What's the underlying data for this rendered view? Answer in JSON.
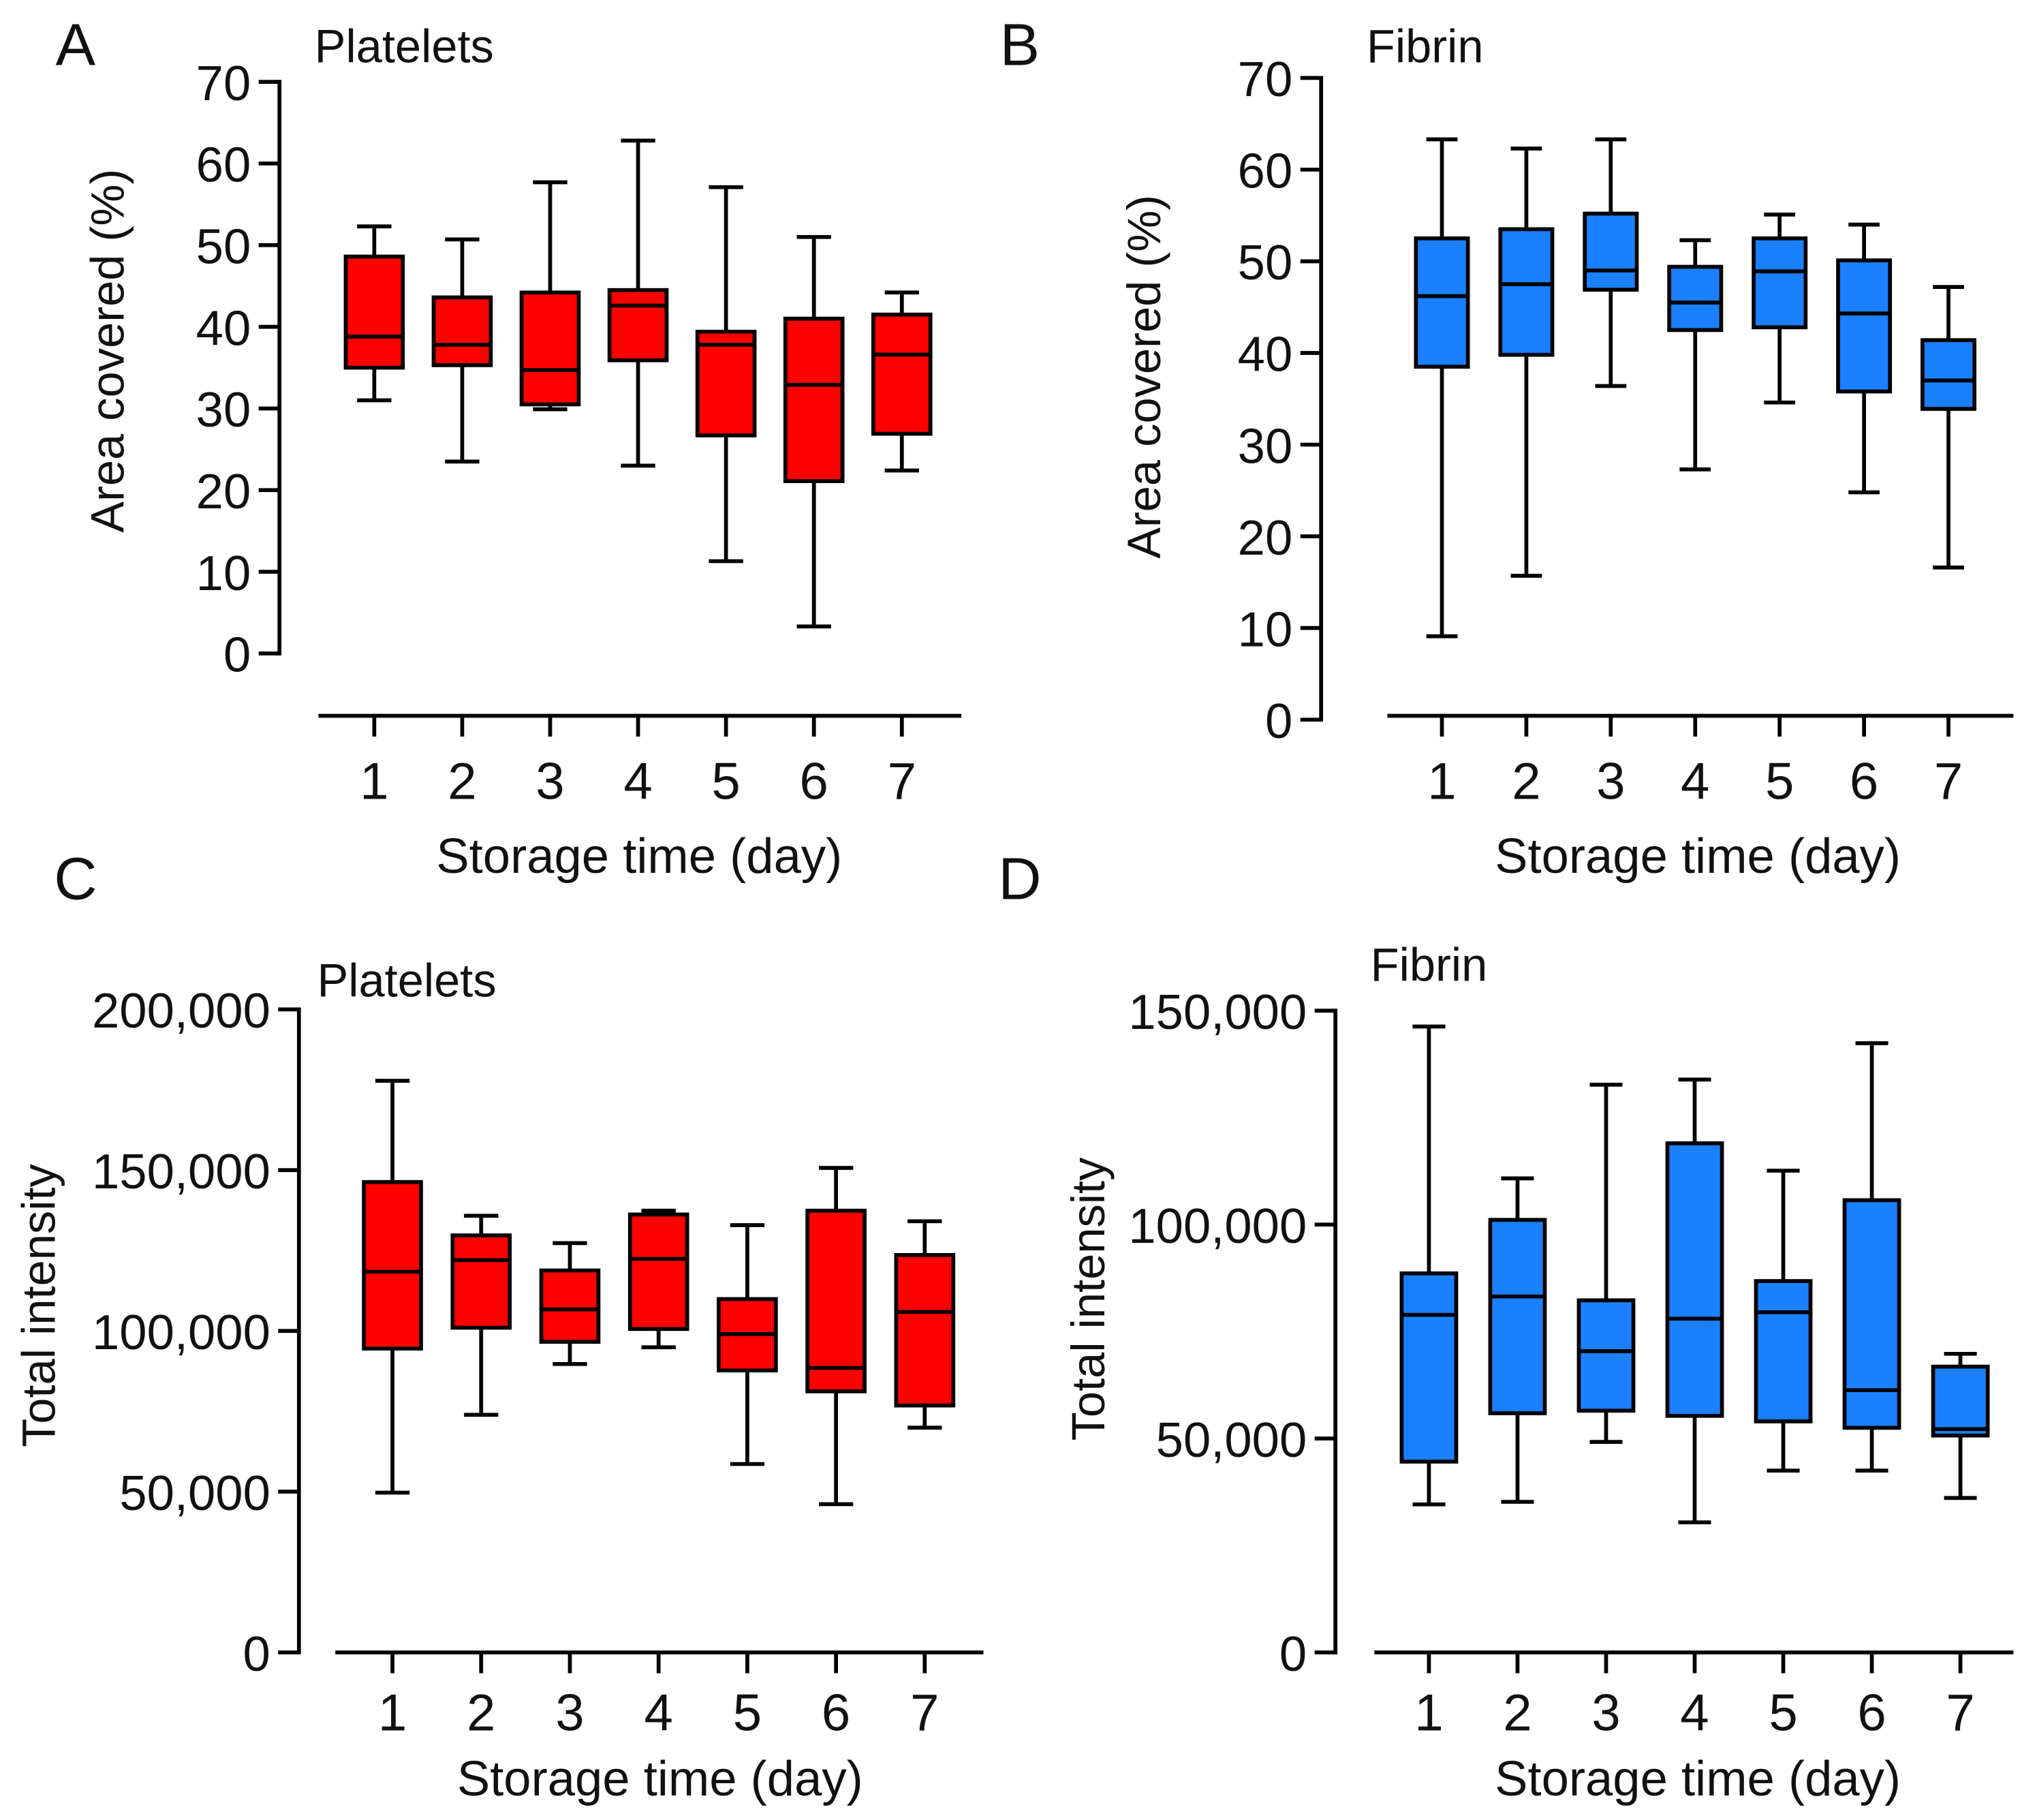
{
  "chart_data": [
    {
      "panel": "A",
      "type": "boxplot",
      "title": "Platelets",
      "xlabel": "Storage time (day)",
      "ylabel": "Area covered (%)",
      "ylim": [
        0,
        70
      ],
      "yticks": [
        0,
        10,
        20,
        30,
        40,
        50,
        60,
        70
      ],
      "ytick_labels": [
        "0",
        "10",
        "20",
        "30",
        "40",
        "50",
        "60",
        "70"
      ],
      "categories": [
        "1",
        "2",
        "3",
        "4",
        "5",
        "6",
        "7"
      ],
      "color": "#ff0000",
      "boxes": [
        {
          "min": 31.0,
          "q1": 35.0,
          "median": 38.8,
          "q3": 48.6,
          "max": 52.3
        },
        {
          "min": 23.5,
          "q1": 35.3,
          "median": 37.8,
          "q3": 43.6,
          "max": 50.7
        },
        {
          "min": 29.9,
          "q1": 30.5,
          "median": 34.7,
          "q3": 44.2,
          "max": 57.7
        },
        {
          "min": 23.0,
          "q1": 35.9,
          "median": 42.6,
          "q3": 44.5,
          "max": 62.8
        },
        {
          "min": 11.3,
          "q1": 26.7,
          "median": 37.8,
          "q3": 39.4,
          "max": 57.1
        },
        {
          "min": 3.3,
          "q1": 21.1,
          "median": 32.9,
          "q3": 41.0,
          "max": 51.0
        },
        {
          "min": 22.4,
          "q1": 26.9,
          "median": 36.6,
          "q3": 41.5,
          "max": 44.2
        }
      ]
    },
    {
      "panel": "B",
      "type": "boxplot",
      "title": "Fibrin",
      "xlabel": "Storage time (day)",
      "ylabel": "Area covered (%)",
      "ylim": [
        0,
        70
      ],
      "yticks": [
        0,
        10,
        20,
        30,
        40,
        50,
        60,
        70
      ],
      "ytick_labels": [
        "0",
        "10",
        "20",
        "30",
        "40",
        "50",
        "60",
        "70"
      ],
      "categories": [
        "1",
        "2",
        "3",
        "4",
        "5",
        "6",
        "7"
      ],
      "color": "#1a80ff",
      "boxes": [
        {
          "min": 9.1,
          "q1": 38.5,
          "median": 46.2,
          "q3": 52.5,
          "max": 63.3
        },
        {
          "min": 15.7,
          "q1": 39.8,
          "median": 47.5,
          "q3": 53.5,
          "max": 62.3
        },
        {
          "min": 36.4,
          "q1": 46.9,
          "median": 49.0,
          "q3": 55.2,
          "max": 63.3
        },
        {
          "min": 27.3,
          "q1": 42.5,
          "median": 45.5,
          "q3": 49.4,
          "max": 52.3
        },
        {
          "min": 34.6,
          "q1": 42.8,
          "median": 48.9,
          "q3": 52.5,
          "max": 55.1
        },
        {
          "min": 24.8,
          "q1": 35.8,
          "median": 44.3,
          "q3": 50.1,
          "max": 54.0
        },
        {
          "min": 16.6,
          "q1": 33.9,
          "median": 37.0,
          "q3": 41.4,
          "max": 47.2
        }
      ]
    },
    {
      "panel": "C",
      "type": "boxplot",
      "title": "Platelets",
      "xlabel": "Storage time (day)",
      "ylabel": "Total intensity",
      "ylim": [
        0,
        200000
      ],
      "yticks": [
        0,
        50000,
        100000,
        150000,
        200000
      ],
      "ytick_labels": [
        "0",
        "50,000",
        "100,000",
        "150,000",
        "200,000"
      ],
      "categories": [
        "1",
        "2",
        "3",
        "4",
        "5",
        "6",
        "7"
      ],
      "color": "#ff0000",
      "boxes": [
        {
          "min": 49700,
          "q1": 94500,
          "median": 118400,
          "q3": 146300,
          "max": 177800
        },
        {
          "min": 73900,
          "q1": 101000,
          "median": 122000,
          "q3": 129700,
          "max": 135800
        },
        {
          "min": 89700,
          "q1": 96600,
          "median": 106700,
          "q3": 118800,
          "max": 127300
        },
        {
          "min": 94900,
          "q1": 100600,
          "median": 122400,
          "q3": 136200,
          "max": 137400
        },
        {
          "min": 58600,
          "q1": 87700,
          "median": 99000,
          "q3": 109900,
          "max": 132900
        },
        {
          "min": 46100,
          "q1": 81200,
          "median": 88500,
          "q3": 137400,
          "max": 150700
        },
        {
          "min": 69900,
          "q1": 76800,
          "median": 105900,
          "q3": 123600,
          "max": 134100
        }
      ]
    },
    {
      "panel": "D",
      "type": "boxplot",
      "title": "Fibrin",
      "xlabel": "Storage time (day)",
      "ylabel": "Total intensity",
      "ylim": [
        0,
        150000
      ],
      "yticks": [
        0,
        50000,
        100000,
        150000
      ],
      "ytick_labels": [
        "0",
        "50,000",
        "100,000",
        "150,000"
      ],
      "categories": [
        "1",
        "2",
        "3",
        "4",
        "5",
        "6",
        "7"
      ],
      "color": "#1a80ff",
      "boxes": [
        {
          "min": 34600,
          "q1": 44600,
          "median": 78900,
          "q3": 88600,
          "max": 146300
        },
        {
          "min": 35200,
          "q1": 55900,
          "median": 83200,
          "q3": 101100,
          "max": 110800
        },
        {
          "min": 49200,
          "q1": 56500,
          "median": 70400,
          "q3": 82300,
          "max": 132700
        },
        {
          "min": 30400,
          "q1": 55300,
          "median": 78000,
          "q3": 119000,
          "max": 133900
        },
        {
          "min": 42500,
          "q1": 54000,
          "median": 79500,
          "q3": 86800,
          "max": 112600
        },
        {
          "min": 42500,
          "q1": 52500,
          "median": 61300,
          "q3": 105700,
          "max": 142400
        },
        {
          "min": 36100,
          "q1": 50700,
          "median": 52200,
          "q3": 66800,
          "max": 69800
        }
      ]
    }
  ]
}
